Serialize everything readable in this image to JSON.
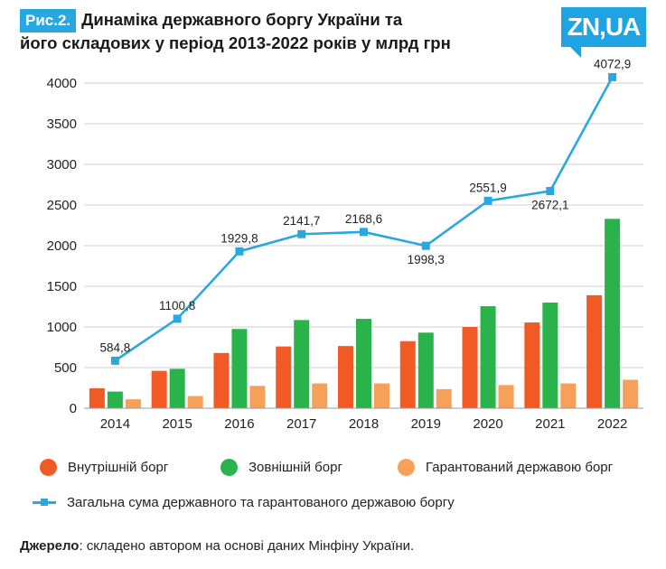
{
  "header": {
    "fig_tag": "Рис.2.",
    "title_line1": "Динаміка державного боргу України та",
    "title_line2": "його складових у період 2013-2022 років у млрд грн",
    "logo": "ZN,UA"
  },
  "chart_data": {
    "type": "bar",
    "title": "Динаміка державного боргу України та його складових у період 2013-2022 років у млрд грн",
    "categories": [
      "2014",
      "2015",
      "2016",
      "2017",
      "2018",
      "2019",
      "2020",
      "2021",
      "2022"
    ],
    "ylim": [
      0,
      4000
    ],
    "yticks": [
      "0",
      "500",
      "1000",
      "1500",
      "2000",
      "2500",
      "3000",
      "3500",
      "4000"
    ],
    "series": [
      {
        "name": "Внутрішній борг",
        "type": "bar",
        "color": "#f15a24",
        "values": [
          245,
          460,
          680,
          760,
          765,
          825,
          1000,
          1055,
          1390
        ]
      },
      {
        "name": "Зовнішній борг",
        "type": "bar",
        "color": "#2ab34a",
        "values": [
          205,
          485,
          975,
          1085,
          1100,
          930,
          1255,
          1300,
          2330
        ]
      },
      {
        "name": "Гарантований державою борг",
        "type": "bar",
        "color": "#f7a05a",
        "values": [
          110,
          150,
          275,
          305,
          305,
          235,
          285,
          305,
          350
        ]
      },
      {
        "name": "Загальна сума державного та гарантованого державою боргу",
        "type": "line",
        "color": "#29a8e0",
        "values": [
          584.8,
          1100.8,
          1929.8,
          2141.7,
          2168.6,
          1998.3,
          2551.9,
          2672.1,
          4072.9
        ],
        "labels": [
          "584,8",
          "1100,8",
          "1929,8",
          "2141,7",
          "2168,6",
          "1998,3",
          "2551,9",
          "2672,1",
          "4072,9"
        ]
      }
    ]
  },
  "legend": {
    "domestic": "Внутрішній борг",
    "external": "Зовнішній борг",
    "guaranteed": "Гарантований державою борг",
    "total": "Загальна сума державного та гарантованого державою боргу"
  },
  "source": {
    "label": "Джерело",
    "text": ": складено автором на основі даних Мінфіну України."
  }
}
